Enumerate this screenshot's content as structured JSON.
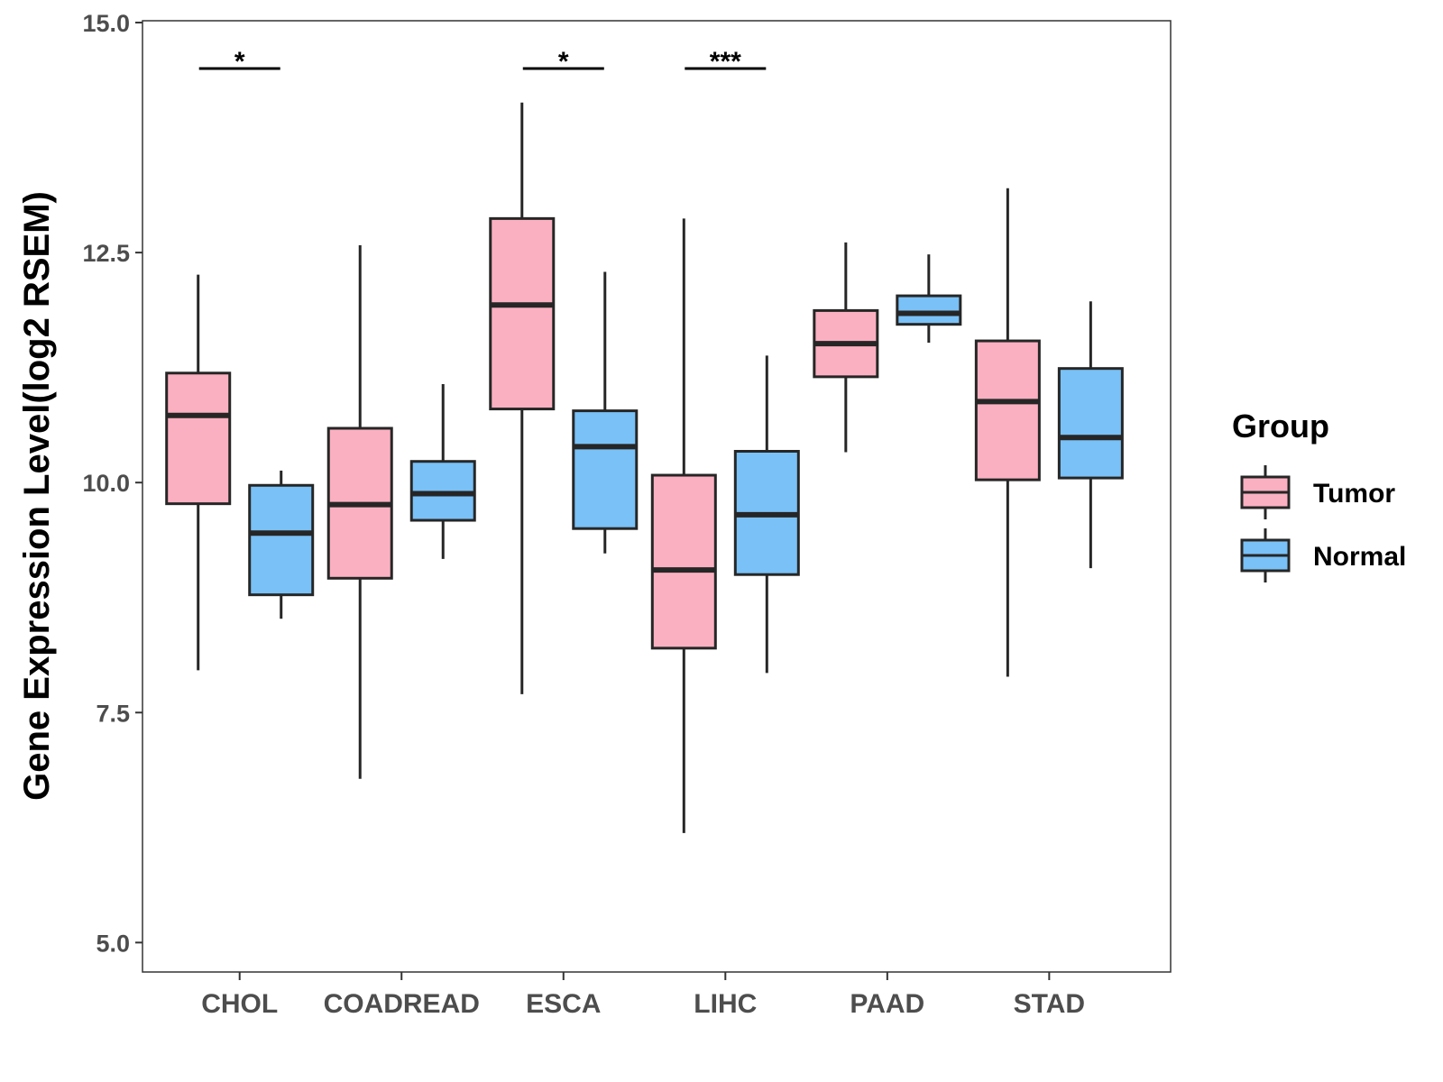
{
  "chart_data": {
    "type": "boxplot",
    "ylabel": "Gene Expression Level(log2 RSEM)",
    "xlabel": "",
    "ylim": [
      4.68,
      15.02
    ],
    "yticks": [
      5.0,
      7.5,
      10.0,
      12.5,
      15.0
    ],
    "ytick_labels": [
      "5.0",
      "7.5",
      "10.0",
      "12.5",
      "15.0"
    ],
    "categories": [
      "CHOL",
      "COADREAD",
      "ESCA",
      "LIHC",
      "PAAD",
      "STAD"
    ],
    "legend": {
      "title": "Group",
      "position": "right",
      "entries": [
        {
          "name": "Tumor",
          "color": "#fbb0c1"
        },
        {
          "name": "Normal",
          "color": "#79c1f7"
        }
      ]
    },
    "series": [
      {
        "name": "Tumor",
        "color": "#fbb0c1",
        "boxes": [
          {
            "category": "CHOL",
            "min": 7.96,
            "q1": 9.77,
            "median": 10.73,
            "q3": 11.19,
            "max": 12.26
          },
          {
            "category": "COADREAD",
            "min": 6.78,
            "q1": 8.96,
            "median": 9.76,
            "q3": 10.59,
            "max": 12.58
          },
          {
            "category": "ESCA",
            "min": 7.7,
            "q1": 10.8,
            "median": 11.93,
            "q3": 12.87,
            "max": 14.13
          },
          {
            "category": "LIHC",
            "min": 6.19,
            "q1": 8.2,
            "median": 9.05,
            "q3": 10.08,
            "max": 12.87
          },
          {
            "category": "PAAD",
            "min": 10.33,
            "q1": 11.15,
            "median": 11.51,
            "q3": 11.87,
            "max": 12.61
          },
          {
            "category": "STAD",
            "min": 7.89,
            "q1": 10.03,
            "median": 10.88,
            "q3": 11.54,
            "max": 13.2
          }
        ]
      },
      {
        "name": "Normal",
        "color": "#79c1f7",
        "boxes": [
          {
            "category": "CHOL",
            "min": 8.52,
            "q1": 8.78,
            "median": 9.45,
            "q3": 9.97,
            "max": 10.13
          },
          {
            "category": "COADREAD",
            "min": 9.17,
            "q1": 9.59,
            "median": 9.88,
            "q3": 10.23,
            "max": 11.07
          },
          {
            "category": "ESCA",
            "min": 9.23,
            "q1": 9.5,
            "median": 10.39,
            "q3": 10.78,
            "max": 12.29
          },
          {
            "category": "LIHC",
            "min": 7.93,
            "q1": 9.0,
            "median": 9.65,
            "q3": 10.34,
            "max": 11.38
          },
          {
            "category": "PAAD",
            "min": 11.52,
            "q1": 11.72,
            "median": 11.84,
            "q3": 12.03,
            "max": 12.48
          },
          {
            "category": "STAD",
            "min": 9.07,
            "q1": 10.05,
            "median": 10.49,
            "q3": 11.24,
            "max": 11.97
          }
        ]
      }
    ],
    "significance": [
      {
        "category": "CHOL",
        "label": "*",
        "y": 14.5
      },
      {
        "category": "ESCA",
        "label": "*",
        "y": 14.5
      },
      {
        "category": "LIHC",
        "label": "***",
        "y": 14.5
      }
    ]
  }
}
